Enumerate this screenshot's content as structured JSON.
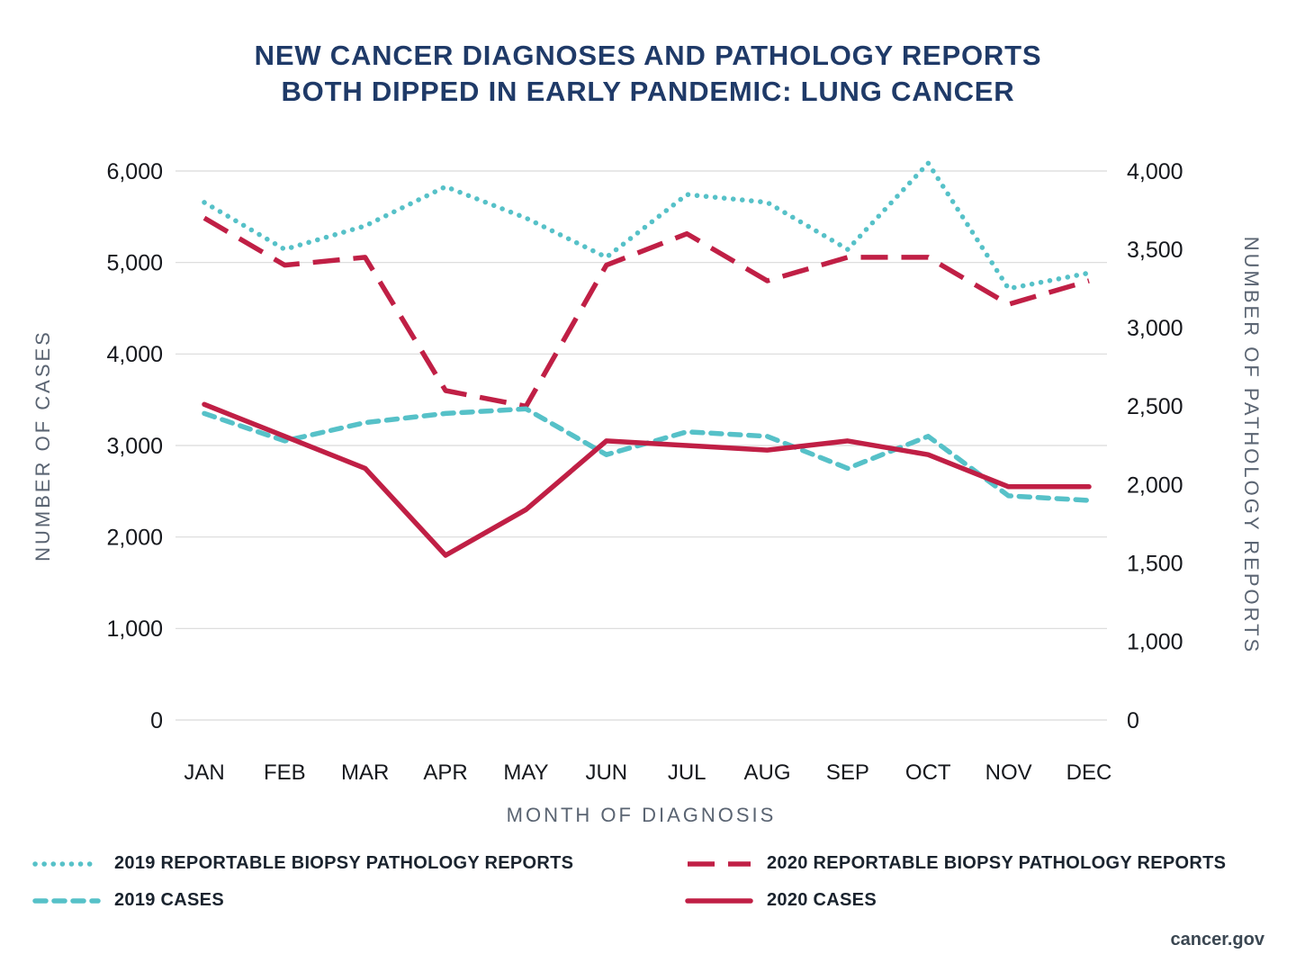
{
  "title": {
    "line1": "NEW CANCER DIAGNOSES AND PATHOLOGY REPORTS",
    "line2": "BOTH DIPPED IN EARLY PANDEMIC: LUNG CANCER"
  },
  "watermark": "cancer.gov",
  "colors": {
    "teal": "#56c1c8",
    "crimson": "#c01f45",
    "navy": "#1f3a68",
    "axis_title": "#5a6472",
    "grid": "#d9d9d9",
    "tick_text": "#16181d"
  },
  "chart_data": {
    "type": "line",
    "x": [
      "JAN",
      "FEB",
      "MAR",
      "APR",
      "MAY",
      "JUN",
      "JUL",
      "AUG",
      "SEP",
      "OCT",
      "NOV",
      "DEC"
    ],
    "xlabel": "MONTH OF DIAGNOSIS",
    "grid": true,
    "legend_position": "bottom",
    "left_axis": {
      "label": "NUMBER OF CASES",
      "range": [
        0,
        6000
      ],
      "ticks": [
        0,
        1000,
        2000,
        3000,
        4000,
        5000,
        6000
      ]
    },
    "right_axis": {
      "label": "NUMBER OF PATHOLOGY REPORTS",
      "ticks": [
        0,
        1000,
        1500,
        2000,
        2500,
        3000,
        3500,
        4000
      ]
    },
    "series": [
      {
        "name": "2019 REPORTABLE BIOPSY PATHOLOGY REPORTS",
        "axis": "right",
        "color": "teal",
        "line_style": "dotted",
        "values": [
          3800,
          3500,
          3650,
          3900,
          3700,
          3450,
          3850,
          3800,
          3500,
          4050,
          3250,
          3350
        ]
      },
      {
        "name": "2020 REPORTABLE BIOPSY PATHOLOGY REPORTS",
        "axis": "right",
        "color": "crimson",
        "line_style": "long-dash",
        "values": [
          3700,
          3400,
          3450,
          2600,
          2500,
          3400,
          3600,
          3300,
          3450,
          3450,
          3150,
          3300
        ]
      },
      {
        "name": "2019 CASES",
        "axis": "left",
        "color": "teal",
        "line_style": "short-dash",
        "values": [
          3350,
          3050,
          3250,
          3350,
          3400,
          2900,
          3150,
          3100,
          2750,
          3100,
          2450,
          2400
        ]
      },
      {
        "name": "2020 CASES",
        "axis": "left",
        "color": "crimson",
        "line_style": "solid",
        "values": [
          3450,
          3100,
          2750,
          1800,
          2300,
          3050,
          3000,
          2950,
          3050,
          2900,
          2550,
          2550
        ]
      }
    ]
  }
}
